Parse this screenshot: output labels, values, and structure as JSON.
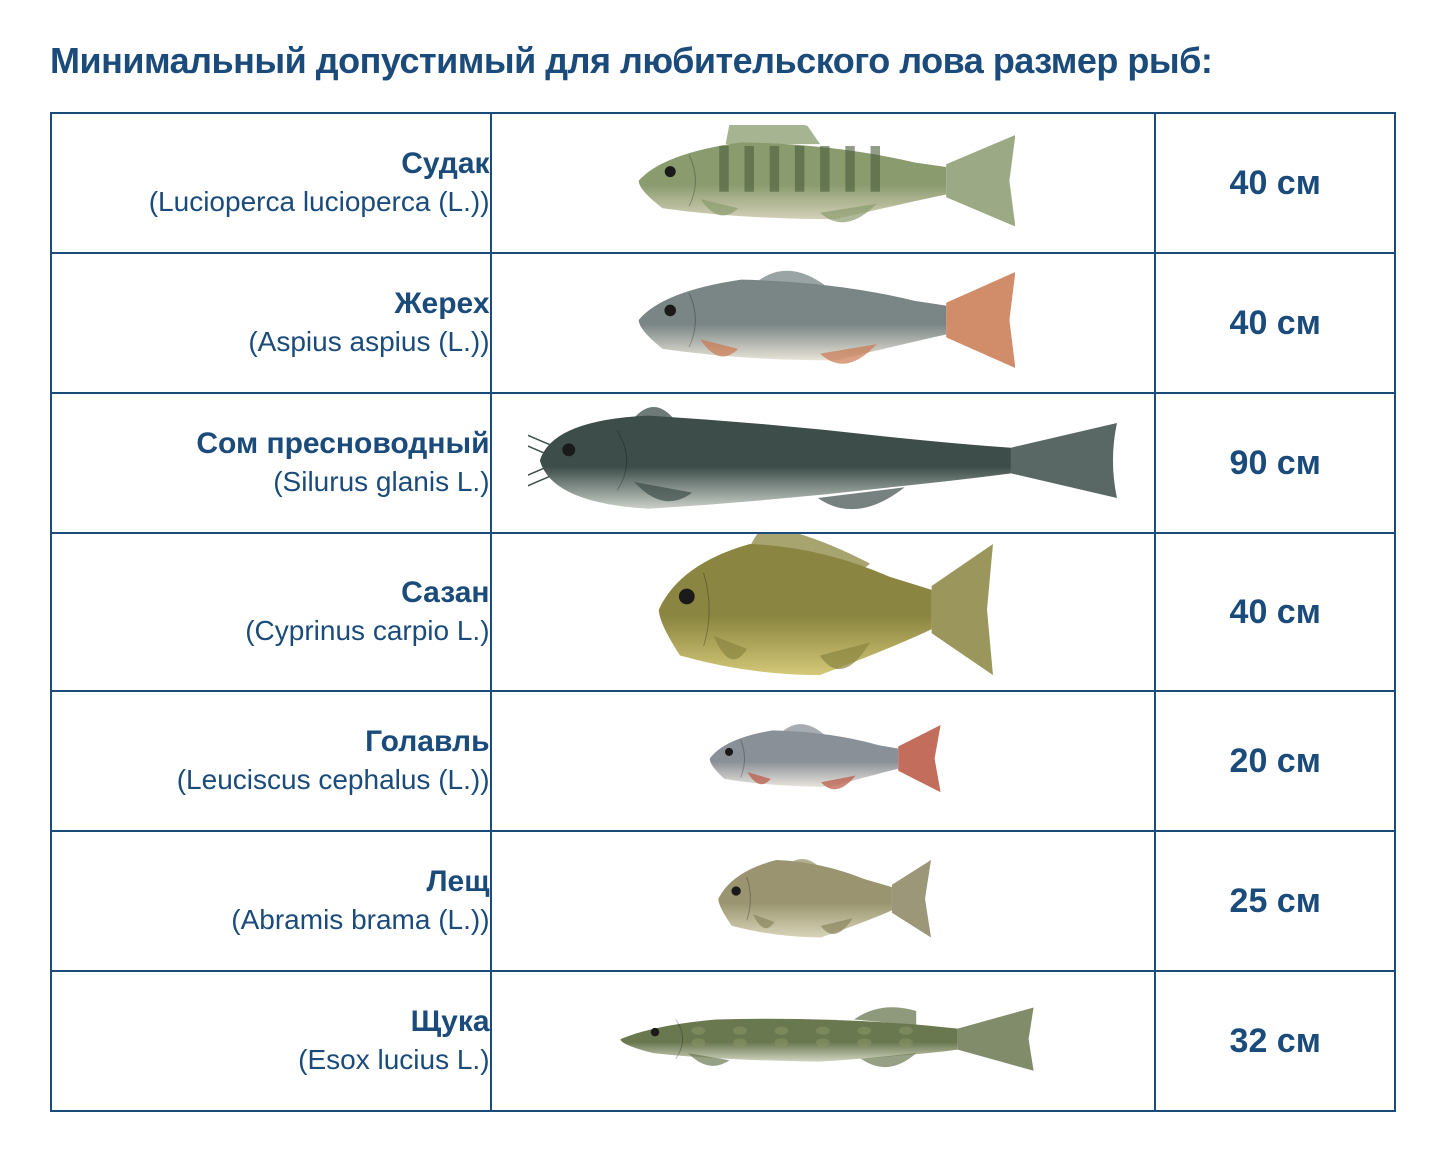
{
  "title": "Минимальный допустимый для любительского лова размер рыб:",
  "colors": {
    "primary": "#1a4b7a",
    "background": "#ffffff",
    "border": "#1a4b7a"
  },
  "table": {
    "rows": [
      {
        "common_name": "Судак",
        "latin_name": "(Lucioperca lucioperca (L.))",
        "size": "40 см",
        "fish": {
          "type": "zander",
          "body_color": "#8a9b6e",
          "stripe_color": "#4a5d3a",
          "belly_color": "#d4d0b8",
          "width_ratio": 0.62,
          "aspect": 4.2
        }
      },
      {
        "common_name": "Жерех",
        "latin_name": "(Aspius aspius (L.))",
        "size": "40 см",
        "fish": {
          "type": "asp",
          "body_color": "#7a8585",
          "belly_color": "#e8e4d8",
          "fin_color": "#c97850",
          "width_ratio": 0.62,
          "aspect": 4.0
        }
      },
      {
        "common_name": "Сом пресноводный",
        "latin_name": "(Silurus glanis L.)",
        "size": "90 см",
        "fish": {
          "type": "catfish",
          "body_color": "#3d4d4a",
          "belly_color": "#c9d0c8",
          "spot_color": "#2a3835",
          "width_ratio": 0.95,
          "aspect": 5.5
        }
      },
      {
        "common_name": "Сазан",
        "latin_name": "(Cyprinus carpio L.)",
        "size": "40 см",
        "fish": {
          "type": "carp",
          "body_color": "#8a8540",
          "belly_color": "#d4c878",
          "scale_color": "#6b6830",
          "width_ratio": 0.55,
          "aspect": 2.6
        }
      },
      {
        "common_name": "Голавль",
        "latin_name": "(Leuciscus cephalus (L.))",
        "size": "20 см",
        "fish": {
          "type": "chub",
          "body_color": "#8a9098",
          "belly_color": "#e8e4dc",
          "fin_color": "#b85540",
          "width_ratio": 0.38,
          "aspect": 3.5
        }
      },
      {
        "common_name": "Лещ",
        "latin_name": "(Abramis brama (L.))",
        "size": "25 см",
        "fish": {
          "type": "bream",
          "body_color": "#9a9570",
          "belly_color": "#d8d4b8",
          "fin_color": "#8a8560",
          "width_ratio": 0.35,
          "aspect": 2.8
        }
      },
      {
        "common_name": "Щука",
        "latin_name": "(Esox lucius L.)",
        "size": "32 см",
        "fish": {
          "type": "pike",
          "body_color": "#6a7850",
          "belly_color": "#d0d4c0",
          "spot_color": "#8a9868",
          "width_ratio": 0.68,
          "aspect": 6.0
        }
      }
    ]
  }
}
